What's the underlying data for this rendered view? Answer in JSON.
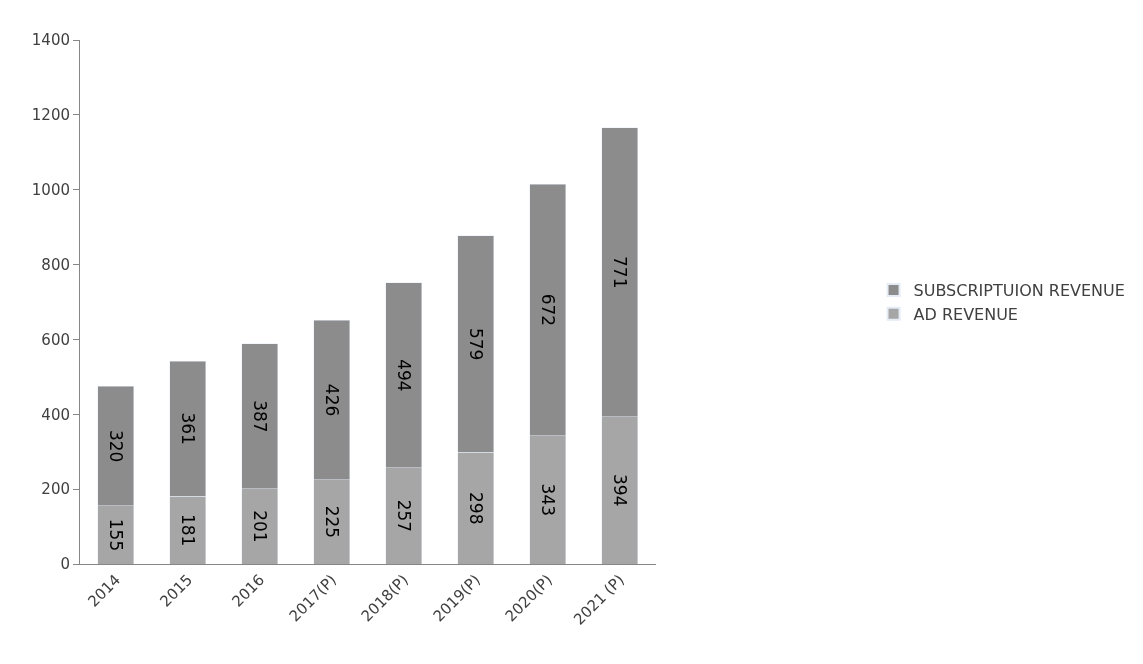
{
  "chart_data": {
    "type": "bar",
    "stacked": true,
    "categories": [
      "2014",
      "2015",
      "2016",
      "2017(P)",
      "2018(P)",
      "2019(P)",
      "2020(P)",
      "2021 (P)"
    ],
    "series": [
      {
        "name": "AD REVENUE",
        "color": "#a6a6a6",
        "values": [
          155,
          181,
          201,
          225,
          257,
          298,
          343,
          394
        ]
      },
      {
        "name": "SUBSCRIPTUION REVENUE",
        "color": "#8c8c8c",
        "values": [
          320,
          361,
          387,
          426,
          494,
          579,
          672,
          771
        ]
      }
    ],
    "ylim": [
      0,
      1400
    ],
    "yticks": [
      0,
      200,
      400,
      600,
      800,
      1000,
      1200,
      1400
    ],
    "data_labels": true,
    "grid": false,
    "legend": "right"
  }
}
